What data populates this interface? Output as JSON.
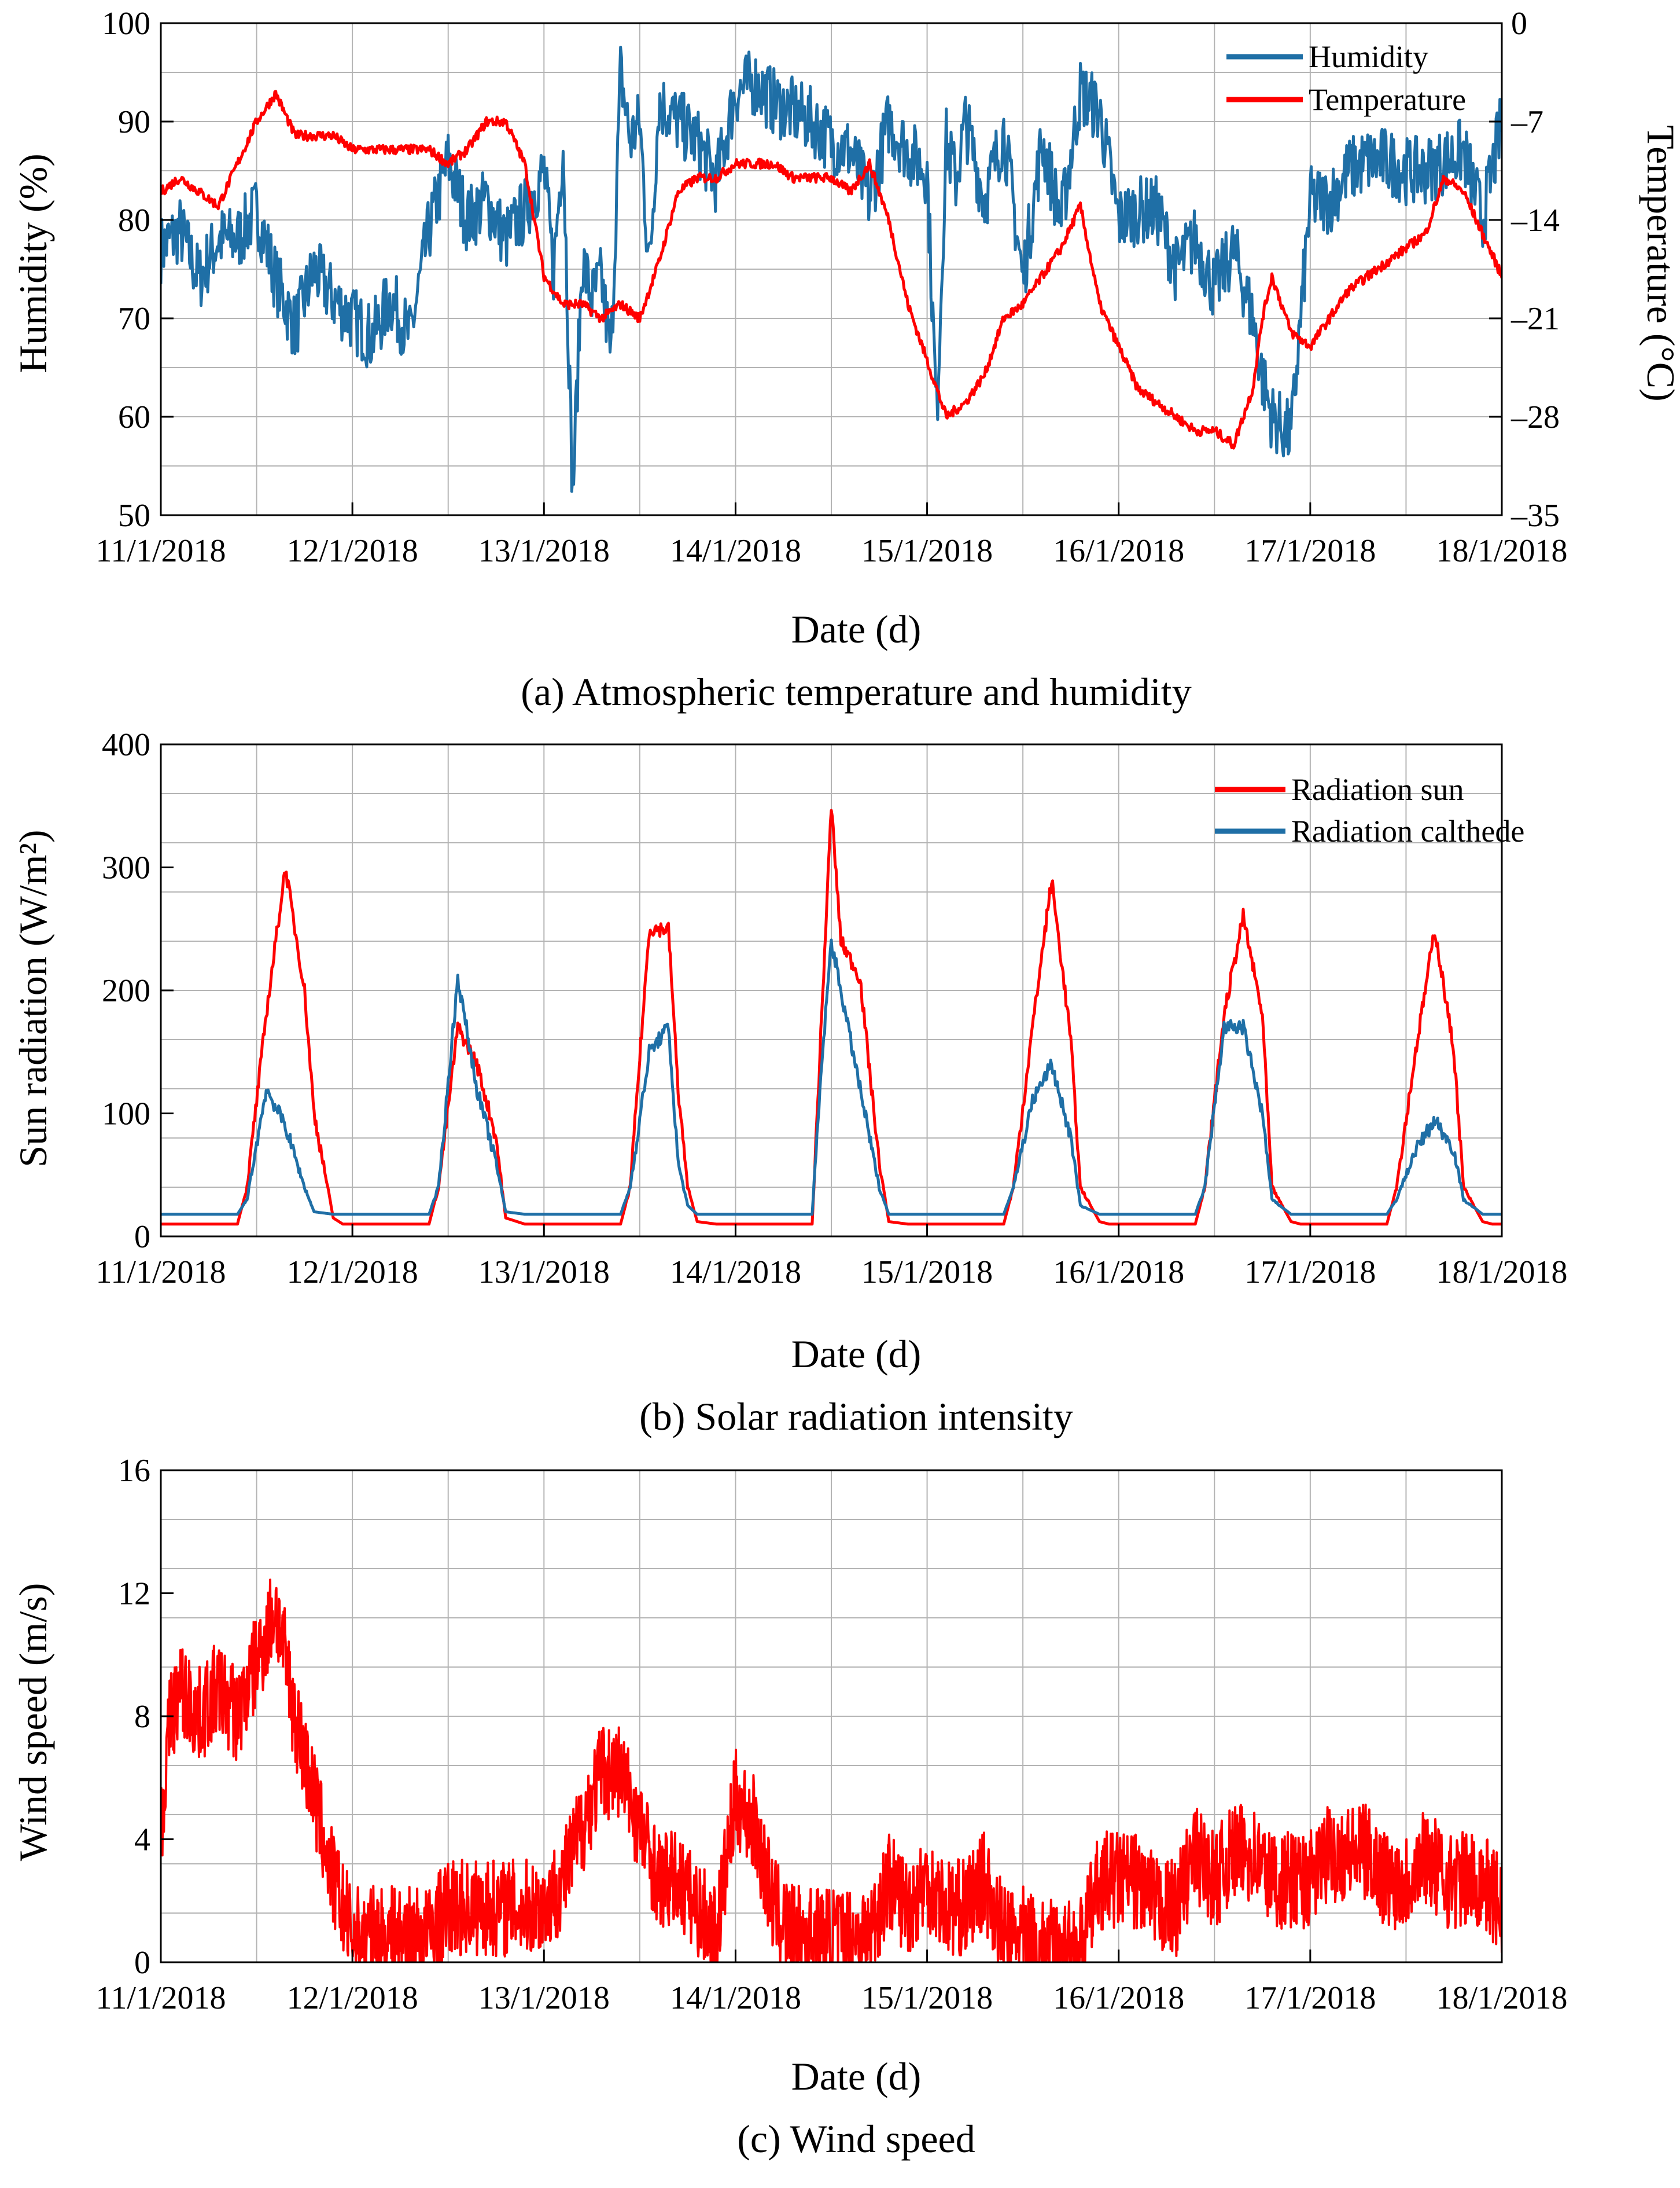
{
  "colors": {
    "humidity": "#1f6fa6",
    "temperature": "#ff0000",
    "radiation_sun": "#ff0000",
    "radiation_calthede": "#1f6fa6",
    "wind": "#ff0000",
    "grid": "#b4b4b4"
  },
  "x_tick_labels": [
    "11/1/2018",
    "12/1/2018",
    "13/1/2018",
    "14/1/2018",
    "15/1/2018",
    "16/1/2018",
    "17/1/2018",
    "18/1/2018",
    "11/1/2018",
    "12/1/2018",
    "13/1/2018",
    "14/1/2018",
    "15/1/2018",
    "16/1/2018",
    "17/1/2018",
    "18/1/2018"
  ],
  "chart_data": [
    {
      "type": "line",
      "caption": "(a) Atmospheric temperature and humidity",
      "xlabel": "Date (d)",
      "ylabel": "Humidity (%)",
      "y2label": "Temperature (°C)",
      "xlim": [
        11,
        18
      ],
      "x_tick_labels": [
        "11/1/2018",
        "12/1/2018",
        "13/1/2018",
        "14/1/2018",
        "15/1/2018",
        "16/1/2018",
        "17/1/2018",
        "18/1/2018"
      ],
      "ylim": [
        50,
        100
      ],
      "y_ticks": [
        "50",
        "60",
        "70",
        "80",
        "90",
        "100"
      ],
      "y2lim": [
        -35,
        0
      ],
      "y2_ticks": [
        "–35",
        "–28",
        "–21",
        "–14",
        "–7",
        "0"
      ],
      "grid": true,
      "legend_position": "top-right",
      "series": [
        {
          "name": "Humidity",
          "axis": "left",
          "x": [
            11.0,
            11.1,
            11.2,
            11.3,
            11.4,
            11.5,
            11.6,
            11.7,
            11.8,
            11.9,
            12.0,
            12.1,
            12.2,
            12.3,
            12.4,
            12.5,
            12.6,
            12.7,
            12.8,
            12.9,
            13.0,
            13.05,
            13.1,
            13.15,
            13.2,
            13.25,
            13.3,
            13.35,
            13.4,
            13.45,
            13.5,
            13.55,
            13.6,
            13.7,
            13.8,
            13.9,
            14.0,
            14.1,
            14.2,
            14.3,
            14.4,
            14.5,
            14.6,
            14.7,
            14.8,
            14.9,
            15.0,
            15.05,
            15.1,
            15.15,
            15.2,
            15.3,
            15.4,
            15.5,
            15.6,
            15.7,
            15.8,
            15.9,
            16.0,
            16.1,
            16.2,
            16.3,
            16.4,
            16.5,
            16.6,
            16.7,
            16.75,
            16.8,
            16.9,
            17.0,
            17.1,
            17.2,
            17.3,
            17.4,
            17.5,
            17.6,
            17.7,
            17.8,
            17.9,
            18.0
          ],
          "values": [
            77,
            79,
            74,
            78,
            78,
            81,
            74,
            69,
            75,
            72,
            70,
            68,
            72,
            68,
            79,
            86,
            80,
            82,
            78,
            81,
            85,
            75,
            88,
            52,
            76,
            72,
            74,
            66,
            95,
            88,
            90,
            75,
            92,
            90,
            88,
            84,
            93,
            94,
            92,
            91,
            90,
            88,
            87,
            82,
            90,
            87,
            85,
            60,
            88,
            84,
            90,
            82,
            89,
            74,
            88,
            80,
            93,
            91,
            80,
            81,
            81,
            75,
            78,
            73,
            77,
            70,
            64,
            60,
            58,
            82,
            82,
            85,
            86,
            86,
            85,
            85,
            86,
            87,
            80,
            90
          ]
        },
        {
          "name": "Temperature",
          "axis": "right",
          "x": [
            11.0,
            11.1,
            11.2,
            11.3,
            11.4,
            11.5,
            11.6,
            11.7,
            11.8,
            11.9,
            12.0,
            12.1,
            12.2,
            12.3,
            12.4,
            12.5,
            12.6,
            12.7,
            12.8,
            12.9,
            13.0,
            13.1,
            13.2,
            13.3,
            13.4,
            13.5,
            13.6,
            13.7,
            13.8,
            13.9,
            14.0,
            14.1,
            14.2,
            14.3,
            14.4,
            14.5,
            14.6,
            14.7,
            14.8,
            14.9,
            15.0,
            15.1,
            15.2,
            15.3,
            15.4,
            15.5,
            15.6,
            15.7,
            15.8,
            15.9,
            16.0,
            16.1,
            16.2,
            16.3,
            16.4,
            16.5,
            16.6,
            16.7,
            16.75,
            16.8,
            16.9,
            17.0,
            17.1,
            17.2,
            17.3,
            17.4,
            17.5,
            17.6,
            17.7,
            17.8,
            17.9,
            18.0
          ],
          "values": [
            -12,
            -11,
            -12,
            -13,
            -10,
            -7,
            -5,
            -8,
            -8,
            -8,
            -9,
            -9,
            -9,
            -9,
            -9,
            -10,
            -9,
            -7,
            -7,
            -10,
            -18,
            -20,
            -20,
            -21,
            -20,
            -21,
            -17,
            -12,
            -11,
            -11,
            -10,
            -10,
            -10,
            -11,
            -11,
            -11,
            -12,
            -10,
            -14,
            -20,
            -24,
            -28,
            -27,
            -25,
            -21,
            -20,
            -18,
            -16,
            -13,
            -20,
            -23,
            -26,
            -27,
            -28,
            -29,
            -29,
            -30,
            -26,
            -21,
            -18,
            -22,
            -23,
            -21,
            -19,
            -18,
            -17,
            -16,
            -15,
            -11,
            -12,
            -15,
            -18
          ]
        }
      ]
    },
    {
      "type": "line",
      "caption": "(b) Solar radiation intensity",
      "xlabel": "Date (d)",
      "ylabel": "Sun radiation (W/m²)",
      "xlim": [
        11,
        18
      ],
      "x_tick_labels": [
        "11/1/2018",
        "12/1/2018",
        "13/1/2018",
        "14/1/2018",
        "15/1/2018",
        "16/1/2018",
        "17/1/2018",
        "18/1/2018"
      ],
      "ylim": [
        0,
        400
      ],
      "y_ticks": [
        "0",
        "100",
        "200",
        "300",
        "400"
      ],
      "grid": true,
      "legend_position": "top-right",
      "series": [
        {
          "name": "Radiation sun",
          "x": [
            11.0,
            11.4,
            11.45,
            11.55,
            11.65,
            11.75,
            11.8,
            11.9,
            11.95,
            12.0,
            12.4,
            12.45,
            12.55,
            12.65,
            12.75,
            12.8,
            12.9,
            12.95,
            13.0,
            13.4,
            13.45,
            13.55,
            13.65,
            13.7,
            13.75,
            13.8,
            13.9,
            13.95,
            14.0,
            14.4,
            14.45,
            14.5,
            14.55,
            14.65,
            14.75,
            14.8,
            14.9,
            14.95,
            15.0,
            15.4,
            15.45,
            15.55,
            15.65,
            15.75,
            15.8,
            15.9,
            15.95,
            16.0,
            16.4,
            16.45,
            16.55,
            16.65,
            16.75,
            16.8,
            16.9,
            16.95,
            17.0,
            17.4,
            17.45,
            17.55,
            17.65,
            17.75,
            17.8,
            17.9,
            17.95,
            18.0
          ],
          "values": [
            10,
            10,
            40,
            180,
            300,
            200,
            100,
            15,
            10,
            10,
            10,
            40,
            170,
            140,
            80,
            15,
            10,
            10,
            10,
            10,
            40,
            250,
            250,
            120,
            40,
            12,
            10,
            10,
            10,
            10,
            180,
            350,
            240,
            210,
            60,
            12,
            10,
            10,
            10,
            10,
            40,
            170,
            290,
            160,
            40,
            12,
            10,
            10,
            10,
            40,
            180,
            260,
            180,
            40,
            12,
            10,
            10,
            10,
            40,
            150,
            250,
            150,
            40,
            12,
            10,
            10
          ]
        },
        {
          "name": "Radiation calthede",
          "x": [
            11.0,
            11.4,
            11.45,
            11.55,
            11.65,
            11.75,
            11.8,
            11.9,
            11.95,
            12.0,
            12.4,
            12.45,
            12.55,
            12.65,
            12.75,
            12.8,
            12.9,
            12.95,
            13.0,
            13.4,
            13.45,
            13.55,
            13.65,
            13.7,
            13.75,
            13.8,
            13.9,
            13.95,
            14.0,
            14.4,
            14.45,
            14.5,
            14.55,
            14.65,
            14.75,
            14.8,
            14.9,
            14.95,
            15.0,
            15.4,
            15.45,
            15.55,
            15.65,
            15.75,
            15.8,
            15.9,
            15.95,
            16.0,
            16.4,
            16.45,
            16.55,
            16.65,
            16.75,
            16.8,
            16.9,
            16.95,
            17.0,
            17.4,
            17.45,
            17.55,
            17.65,
            17.75,
            17.8,
            17.9,
            17.95,
            18.0
          ],
          "values": [
            18,
            18,
            30,
            120,
            90,
            40,
            20,
            18,
            18,
            18,
            18,
            40,
            210,
            120,
            60,
            20,
            18,
            18,
            18,
            18,
            40,
            150,
            170,
            60,
            25,
            18,
            18,
            18,
            18,
            18,
            140,
            240,
            200,
            120,
            40,
            18,
            18,
            18,
            18,
            18,
            40,
            110,
            140,
            80,
            25,
            18,
            18,
            18,
            18,
            40,
            170,
            170,
            100,
            30,
            18,
            18,
            18,
            18,
            30,
            70,
            95,
            70,
            30,
            18,
            18,
            18
          ]
        }
      ]
    },
    {
      "type": "line",
      "caption": "(c) Wind speed",
      "xlabel": "Date (d)",
      "ylabel": "Wind speed (m/s)",
      "xlim": [
        11,
        18
      ],
      "x_tick_labels": [
        "11/1/2018",
        "12/1/2018",
        "13/1/2018",
        "14/1/2018",
        "15/1/2018",
        "16/1/2018",
        "17/1/2018",
        "18/1/2018"
      ],
      "ylim": [
        0,
        18
      ],
      "y_ticks": [
        "0",
        "4",
        "8",
        "12",
        "16"
      ],
      "grid": true,
      "series": [
        {
          "name": "",
          "x": [
            11.0,
            11.05,
            11.1,
            11.2,
            11.3,
            11.4,
            11.5,
            11.6,
            11.7,
            11.8,
            11.9,
            12.0,
            12.1,
            12.2,
            12.3,
            12.4,
            12.5,
            12.6,
            12.7,
            12.8,
            12.9,
            13.0,
            13.1,
            13.2,
            13.3,
            13.4,
            13.5,
            13.6,
            13.7,
            13.8,
            13.9,
            14.0,
            14.1,
            14.2,
            14.3,
            14.4,
            14.5,
            14.6,
            14.7,
            14.8,
            14.9,
            15.0,
            15.1,
            15.2,
            15.3,
            15.4,
            15.5,
            15.6,
            15.7,
            15.8,
            15.9,
            16.0,
            16.1,
            16.2,
            16.3,
            16.4,
            16.5,
            16.6,
            16.7,
            16.8,
            16.9,
            17.0,
            17.1,
            17.2,
            17.3,
            17.4,
            17.5,
            17.6,
            17.7,
            17.8,
            17.9,
            18.0
          ],
          "values": [
            5,
            9,
            10,
            9,
            10,
            9,
            11,
            13,
            9,
            6,
            3,
            1,
            1,
            1,
            1,
            1,
            2,
            2,
            2,
            2,
            2,
            2,
            3,
            5,
            7,
            7,
            5,
            3,
            3,
            2,
            1,
            6,
            5,
            2,
            1,
            1,
            1,
            1,
            1,
            3,
            2,
            3,
            2,
            2,
            3,
            1,
            1,
            0.5,
            0.5,
            0.5,
            3,
            3,
            3,
            2,
            2,
            4,
            3,
            4,
            4,
            3,
            3,
            3,
            4,
            4,
            4,
            3,
            3,
            4,
            3,
            3,
            3,
            2
          ]
        }
      ]
    }
  ]
}
